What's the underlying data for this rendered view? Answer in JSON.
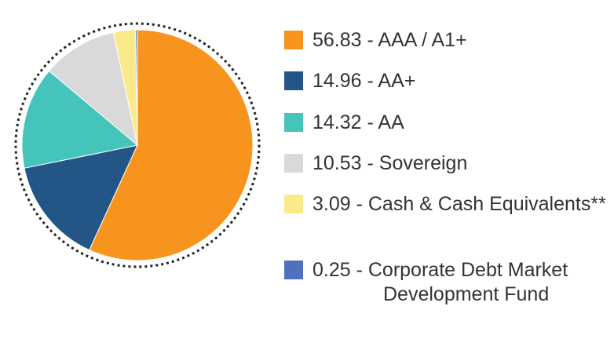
{
  "chart_data": {
    "type": "pie",
    "categories": [
      "56.83 - AAA / A1+",
      "14.96 - AA+",
      "14.32 - AA",
      "10.53 - Sovereign",
      "3.09 - Cash & Cash Equivalents**",
      "0.25 - Corporate Debt Market Development Fund"
    ],
    "values": [
      56.83,
      14.96,
      14.32,
      10.53,
      3.09,
      0.25
    ],
    "colors": [
      "#f7941d",
      "#235587",
      "#45c4bc",
      "#d9d9d9",
      "#fbe98a",
      "#4f6fbf"
    ],
    "legend": "right"
  }
}
